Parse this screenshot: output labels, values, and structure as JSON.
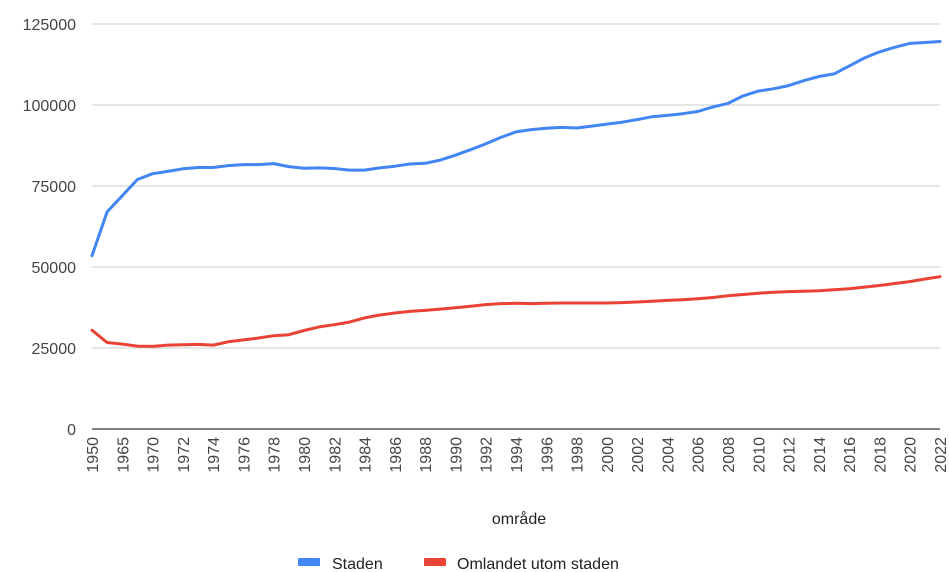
{
  "chart_data": {
    "type": "line",
    "title": "",
    "xlabel": "område",
    "ylabel": "",
    "ylim": [
      0,
      125000
    ],
    "yticks": [
      0,
      25000,
      50000,
      75000,
      100000,
      125000
    ],
    "grid": true,
    "legend_position": "bottom",
    "categories": [
      "1950",
      "1965",
      "1970",
      "1972",
      "1974",
      "1976",
      "1978",
      "1980",
      "1982",
      "1984",
      "1986",
      "1988",
      "1990",
      "1992",
      "1994",
      "1996",
      "1998",
      "2000",
      "2002",
      "2004",
      "2006",
      "2008",
      "2010",
      "2012",
      "2014",
      "2016",
      "2018",
      "2020",
      "2022"
    ],
    "x": [
      "1950",
      "1960",
      "1965",
      "1968",
      "1970",
      "1971",
      "1972",
      "1973",
      "1974",
      "1975",
      "1976",
      "1977",
      "1978",
      "1979",
      "1980",
      "1981",
      "1982",
      "1983",
      "1984",
      "1985",
      "1986",
      "1987",
      "1988",
      "1989",
      "1990",
      "1991",
      "1992",
      "1993",
      "1994",
      "1995",
      "1996",
      "1997",
      "1998",
      "1999",
      "2000",
      "2001",
      "2002",
      "2003",
      "2004",
      "2005",
      "2006",
      "2007",
      "2008",
      "2009",
      "2010",
      "2011",
      "2012",
      "2013",
      "2014",
      "2015",
      "2016",
      "2017",
      "2018",
      "2019",
      "2020",
      "2021",
      "2022"
    ],
    "series": [
      {
        "name": "Staden",
        "color": "#4285f4",
        "values": [
          53500,
          67000,
          72000,
          77000,
          78800,
          79500,
          80300,
          80700,
          80700,
          81300,
          81600,
          81600,
          81900,
          81000,
          80500,
          80600,
          80400,
          79900,
          79900,
          80600,
          81100,
          81800,
          82000,
          83000,
          84500,
          86200,
          88000,
          90000,
          91700,
          92400,
          92800,
          93100,
          92900,
          93500,
          94100,
          94700,
          95500,
          96400,
          96800,
          97300,
          98000,
          99400,
          100500,
          102800,
          104300,
          105000,
          106000,
          107500,
          108800,
          109600,
          112000,
          114500,
          116400,
          117800,
          119000,
          119300,
          119600
        ]
      },
      {
        "name": "Omlandet utom staden",
        "color": "#ea4335",
        "values": [
          30500,
          26700,
          26200,
          25600,
          25500,
          25900,
          26000,
          26100,
          25900,
          26900,
          27500,
          28100,
          28800,
          29100,
          30400,
          31500,
          32200,
          33000,
          34300,
          35200,
          35800,
          36300,
          36600,
          37000,
          37400,
          37900,
          38400,
          38700,
          38800,
          38700,
          38800,
          38900,
          38900,
          38900,
          38900,
          39000,
          39200,
          39400,
          39700,
          39900,
          40200,
          40600,
          41100,
          41500,
          41900,
          42200,
          42400,
          42500,
          42700,
          43000,
          43300,
          43800,
          44300,
          44900,
          45500,
          46300,
          47000
        ]
      }
    ]
  }
}
